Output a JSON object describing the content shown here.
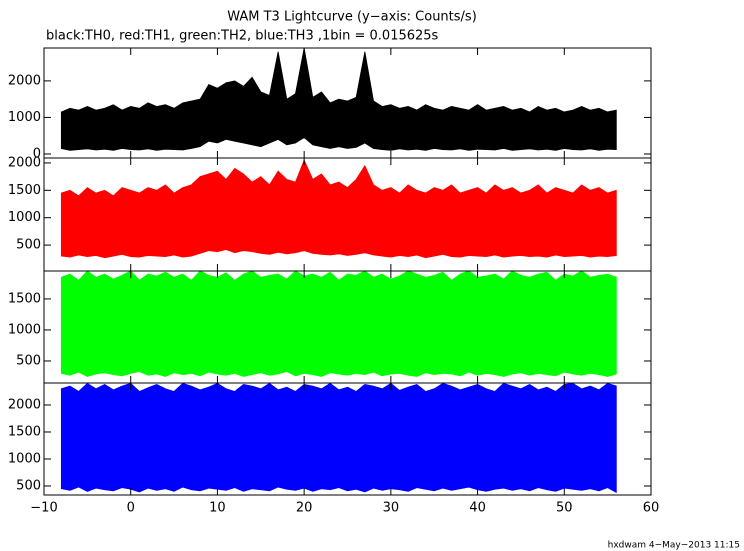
{
  "chart_data": {
    "type": "area",
    "title": "WAM T3 Lightcurve (y−axis: Counts/s)",
    "subtitle": "black:TH0, red:TH1, green:TH2, blue:TH3 ,1bin = 0.015625s",
    "note": "hxdwam  4−May−2013 11:15",
    "xlim": [
      -10,
      60
    ],
    "xticks": [
      {
        "value": -10,
        "label": "−10"
      },
      0,
      10,
      20,
      30,
      40,
      50,
      60
    ],
    "x": [
      -8,
      -7,
      -6,
      -5,
      -4,
      -3,
      -2,
      -1,
      0,
      1,
      2,
      3,
      4,
      5,
      6,
      7,
      8,
      9,
      10,
      11,
      12,
      13,
      14,
      15,
      16,
      17,
      18,
      19,
      20,
      21,
      22,
      23,
      24,
      25,
      26,
      27,
      28,
      29,
      30,
      31,
      32,
      33,
      34,
      35,
      36,
      37,
      38,
      39,
      40,
      41,
      42,
      43,
      44,
      45,
      46,
      47,
      48,
      49,
      50,
      51,
      52,
      53,
      54,
      55,
      56
    ],
    "panels": [
      {
        "ylim": [
          -110,
          2900
        ],
        "yticks": [
          0,
          1000,
          2000
        ],
        "color": "#000000",
        "max": [
          1150,
          1250,
          1200,
          1300,
          1200,
          1250,
          1350,
          1200,
          1300,
          1250,
          1400,
          1300,
          1350,
          1250,
          1400,
          1450,
          1500,
          1900,
          1800,
          1950,
          2000,
          1850,
          2100,
          1700,
          1600,
          2800,
          1500,
          1650,
          2900,
          1550,
          1700,
          1400,
          1500,
          1450,
          1550,
          2800,
          1450,
          1300,
          1350,
          1250,
          1300,
          1200,
          1350,
          1250,
          1200,
          1300,
          1250,
          1200,
          1350,
          1200,
          1250,
          1300,
          1200,
          1250,
          1150,
          1300,
          1200,
          1250,
          1150,
          1200,
          1300,
          1200,
          1250,
          1150,
          1200
        ],
        "min": [
          150,
          100,
          120,
          140,
          110,
          130,
          100,
          150,
          120,
          110,
          140,
          100,
          130,
          120,
          110,
          150,
          200,
          350,
          300,
          400,
          350,
          300,
          250,
          200,
          300,
          400,
          250,
          300,
          450,
          250,
          200,
          150,
          200,
          150,
          180,
          300,
          150,
          120,
          100,
          140,
          110,
          130,
          100,
          150,
          120,
          110,
          140,
          100,
          130,
          120,
          110,
          150,
          100,
          120,
          140,
          110,
          130,
          100,
          150,
          120,
          110,
          140,
          100,
          130,
          120
        ]
      },
      {
        "ylim": [
          27,
          2090
        ],
        "yticks": [
          500,
          1000,
          1500,
          2000
        ],
        "color": "#ff0000",
        "max": [
          1450,
          1500,
          1400,
          1550,
          1450,
          1500,
          1400,
          1550,
          1500,
          1450,
          1550,
          1500,
          1600,
          1450,
          1550,
          1600,
          1750,
          1800,
          1850,
          1700,
          1900,
          1800,
          1650,
          1750,
          1600,
          1850,
          1700,
          1650,
          2050,
          1700,
          1800,
          1600,
          1650,
          1550,
          1700,
          1950,
          1600,
          1500,
          1550,
          1450,
          1600,
          1500,
          1450,
          1550,
          1500,
          1600,
          1450,
          1500,
          1550,
          1450,
          1600,
          1500,
          1550,
          1450,
          1500,
          1600,
          1450,
          1550,
          1500,
          1450,
          1600,
          1500,
          1550,
          1450,
          1500
        ],
        "min": [
          300,
          280,
          320,
          290,
          310,
          270,
          300,
          330,
          290,
          280,
          310,
          300,
          290,
          320,
          280,
          300,
          350,
          400,
          380,
          420,
          360,
          400,
          380,
          350,
          330,
          370,
          340,
          360,
          400,
          350,
          330,
          320,
          340,
          310,
          330,
          360,
          320,
          300,
          280,
          310,
          290,
          320,
          270,
          300,
          330,
          290,
          280,
          310,
          300,
          290,
          320,
          280,
          300,
          310,
          290,
          300,
          280,
          320,
          290,
          300,
          310,
          280,
          300,
          290,
          310
        ]
      },
      {
        "ylim": [
          145,
          1950
        ],
        "yticks": [
          500,
          1000,
          1500
        ],
        "color": "#00ff00",
        "max": [
          1850,
          1900,
          1800,
          1950,
          1850,
          1900,
          1820,
          1880,
          1950,
          1800,
          1900,
          1870,
          1930,
          1850,
          1900,
          1800,
          1950,
          1880,
          1850,
          1920,
          1800,
          1900,
          1950,
          1850,
          1880,
          1900,
          1820,
          1950,
          1870,
          1900,
          1850,
          1930,
          1800,
          1900,
          1880,
          1950,
          1850,
          1900,
          1820,
          1870,
          1950,
          1900,
          1850,
          1880,
          1930,
          1800,
          1900,
          1950,
          1850,
          1870,
          1900,
          1820,
          1950,
          1880,
          1850,
          1900,
          1930,
          1800,
          1900,
          1870,
          1950,
          1850,
          1880,
          1900,
          1850
        ],
        "min": [
          300,
          270,
          320,
          250,
          290,
          310,
          280,
          260,
          300,
          330,
          270,
          290,
          250,
          310,
          280,
          300,
          260,
          320,
          290,
          270,
          300,
          250,
          280,
          310,
          270,
          290,
          330,
          260,
          300,
          280,
          250,
          310,
          290,
          270,
          300,
          280,
          320,
          260,
          290,
          300,
          270,
          250,
          310,
          280,
          300,
          290,
          260,
          320,
          270,
          300,
          280,
          250,
          290,
          310,
          270,
          300,
          280,
          260,
          320,
          290,
          270,
          300,
          280,
          250,
          290
        ]
      },
      {
        "ylim": [
          333,
          2407
        ],
        "yticks": [
          500,
          1000,
          1500,
          2000
        ],
        "color": "#0000ff",
        "max": [
          2300,
          2350,
          2250,
          2400,
          2300,
          2380,
          2280,
          2350,
          2400,
          2250,
          2320,
          2380,
          2300,
          2250,
          2400,
          2350,
          2280,
          2330,
          2400,
          2300,
          2250,
          2380,
          2350,
          2300,
          2400,
          2280,
          2330,
          2250,
          2380,
          2350,
          2300,
          2400,
          2280,
          2330,
          2250,
          2380,
          2350,
          2300,
          2400,
          2270,
          2330,
          2380,
          2250,
          2300,
          2400,
          2350,
          2280,
          2330,
          2380,
          2300,
          2250,
          2400,
          2350,
          2300,
          2380,
          2280,
          2330,
          2250,
          2380,
          2400,
          2300,
          2350,
          2280,
          2400,
          2350
        ],
        "min": [
          450,
          420,
          480,
          400,
          460,
          430,
          410,
          470,
          440,
          390,
          460,
          420,
          450,
          400,
          480,
          430,
          410,
          460,
          440,
          420,
          470,
          400,
          450,
          430,
          410,
          480,
          440,
          420,
          460,
          400,
          450,
          430,
          470,
          410,
          440,
          390,
          460,
          420,
          450,
          430,
          400,
          470,
          440,
          410,
          460,
          420,
          450,
          480,
          430,
          400,
          440,
          460,
          420,
          450,
          410,
          470,
          430,
          400,
          460,
          440,
          420,
          450,
          410,
          470,
          380
        ]
      }
    ]
  }
}
